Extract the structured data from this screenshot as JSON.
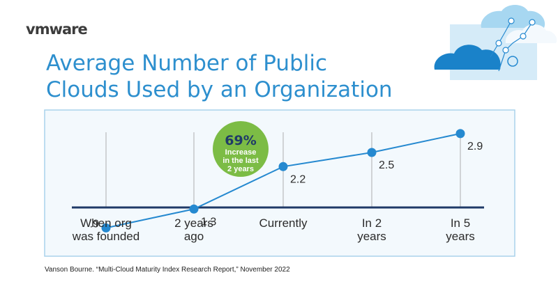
{
  "brand": {
    "logo_text": "vmware"
  },
  "title_lines": [
    "Average Number of Public",
    "Clouds Used by an Organization"
  ],
  "callout": {
    "value": "69%",
    "lines": [
      "Increase",
      "in the last",
      "2 years"
    ]
  },
  "source": "Vanson Bourne. “Multi-Cloud Maturity Index Research Report,” November 2022",
  "colors": {
    "title": "#2d8fce",
    "line": "#2589d0",
    "panel_border": "#a9d2ec",
    "panel_fill": "#f3f9fd",
    "axis": "#1f3a68",
    "badge": "#7cbc45",
    "badge_text": "#1f3a68"
  },
  "chart_data": {
    "type": "line",
    "categories": [
      [
        "When org",
        "was founded"
      ],
      [
        "2 years",
        "ago"
      ],
      [
        "Currently"
      ],
      [
        "In 2",
        "years"
      ],
      [
        "In 5",
        "years"
      ]
    ],
    "values": [
      0.9,
      1.3,
      2.2,
      2.5,
      2.9
    ],
    "value_labels": [
      ".9",
      "1.3",
      "2.2",
      "2.5",
      "2.9"
    ],
    "title": "Average Number of Public Clouds Used by an Organization",
    "xlabel": "",
    "ylabel": "",
    "ylim": [
      0.3,
      3.4
    ],
    "grid": true,
    "legend": "none"
  }
}
